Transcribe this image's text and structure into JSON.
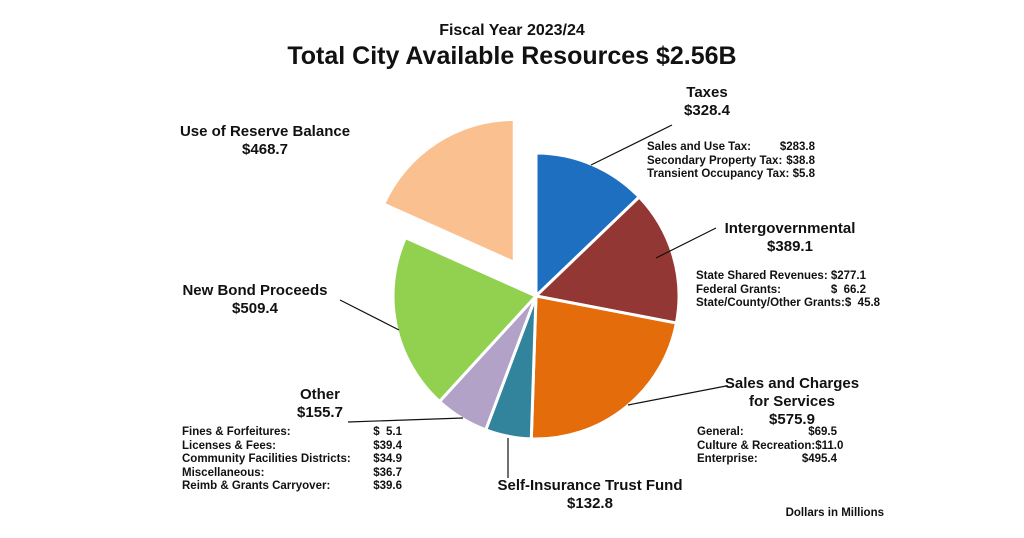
{
  "header": {
    "subtitle": "Fiscal Year 2023/24",
    "title": "Total City Available Resources $2.56B"
  },
  "footnote": "Dollars in Millions",
  "chart_data": {
    "type": "pie",
    "title": "Total City Available Resources $2.56B",
    "subtitle": "Fiscal Year 2023/24",
    "units": "Dollars in Millions",
    "slices": [
      {
        "name": "Taxes",
        "value": 328.4,
        "value_label": "$328.4",
        "color": "#1f6fc0",
        "details": [
          {
            "label": "Sales and Use Tax:",
            "value": "$283.8"
          },
          {
            "label": "Secondary Property Tax:",
            "value": "$38.8"
          },
          {
            "label": "Transient Occupancy Tax:",
            "value": "$5.8"
          }
        ]
      },
      {
        "name": "Intergovernmental",
        "value": 389.1,
        "value_label": "$389.1",
        "color": "#923734",
        "details": [
          {
            "label": "State Shared Revenues:",
            "value": "$277.1"
          },
          {
            "label": "Federal Grants:",
            "value": "$  66.2"
          },
          {
            "label": "State/County/Other Grants:",
            "value": "$  45.8"
          }
        ]
      },
      {
        "name": "Sales and Charges for Services",
        "name_line1": "Sales and Charges",
        "name_line2": "for Services",
        "value": 575.9,
        "value_label": "$575.9",
        "color": "#e46c0a",
        "details": [
          {
            "label": "General:",
            "value": "$69.5"
          },
          {
            "label": "Culture & Recreation:",
            "value": "$11.0"
          },
          {
            "label": "Enterprise:",
            "value": "$495.4"
          }
        ]
      },
      {
        "name": "Self-Insurance Trust Fund",
        "value": 132.8,
        "value_label": "$132.8",
        "color": "#31849b",
        "details": []
      },
      {
        "name": "Other",
        "value": 155.7,
        "value_label": "$155.7",
        "color": "#b3a2c7",
        "details": [
          {
            "label": "Fines & Forfeitures:",
            "value": "$  5.1"
          },
          {
            "label": "Licenses & Fees:",
            "value": "$39.4"
          },
          {
            "label": "Community Facilities Districts:",
            "value": "$34.9"
          },
          {
            "label": "Miscellaneous:",
            "value": "$36.7"
          },
          {
            "label": "Reimb & Grants Carryover:",
            "value": "$39.6"
          }
        ]
      },
      {
        "name": "New Bond Proceeds",
        "value": 509.4,
        "value_label": "$509.4",
        "color": "#92d050",
        "details": []
      },
      {
        "name": "Use of Reserve Balance",
        "value": 468.7,
        "value_label": "$468.7",
        "color": "#fac090",
        "exploded": true,
        "details": []
      }
    ]
  }
}
